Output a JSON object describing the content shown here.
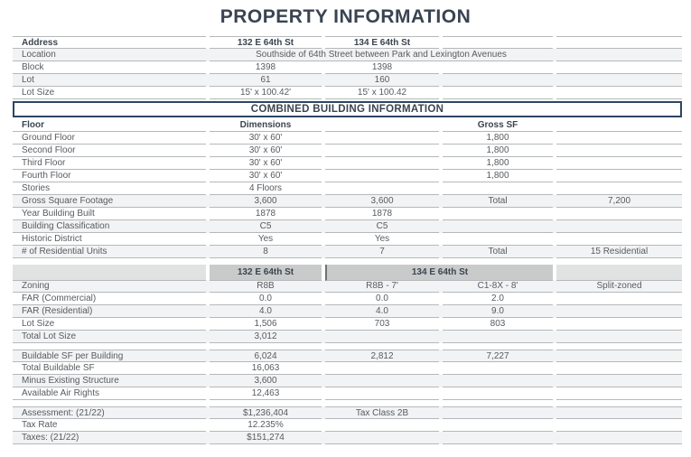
{
  "title": "PROPERTY INFORMATION",
  "colors": {
    "heading_navy": "#3a4351",
    "header_text": "#3b4450",
    "body_text": "#575b5f",
    "row_line": "#b5b8ba",
    "banner_border": "#2d4663",
    "shade_row": "#f2f3f4",
    "colhead_box_bg": "#c8cbca",
    "colhead_row_bg": "#e1e3e2",
    "colhead_divider": "#6e7273"
  },
  "table": {
    "sections": [
      {
        "type": "rows",
        "name": "address-info",
        "topline": true,
        "rows": [
          {
            "name": "address",
            "bold": true,
            "cells": [
              "Address",
              "132 E 64th St",
              "134 E 64th St",
              "",
              ""
            ]
          },
          {
            "name": "location",
            "shade": true,
            "cells": [
              "Location",
              {
                "t": "Southside of 64th Street between Park and Lexington Avenues",
                "span": 3
              },
              ""
            ]
          },
          {
            "name": "block",
            "cells": [
              "Block",
              "1398",
              "1398",
              "",
              ""
            ]
          },
          {
            "name": "lot",
            "shade": true,
            "cells": [
              "Lot",
              "61",
              "160",
              "",
              ""
            ]
          },
          {
            "name": "lot-size",
            "cells": [
              "Lot Size",
              "15' x 100.42'",
              "15' x 100.42",
              "",
              ""
            ]
          }
        ]
      },
      {
        "type": "banner",
        "name": "combined-building-information-header",
        "text": "COMBINED BUILDING INFORMATION"
      },
      {
        "type": "rows",
        "name": "building-info",
        "rows": [
          {
            "name": "floor-header",
            "bold": true,
            "cells": [
              "Floor",
              "Dimensions",
              "",
              "Gross SF",
              ""
            ]
          },
          {
            "name": "ground-floor",
            "cells": [
              "Ground Floor",
              "30' x 60'",
              "",
              "1,800",
              ""
            ]
          },
          {
            "name": "second-floor",
            "cells": [
              "Second Floor",
              "30' x 60'",
              "",
              "1,800",
              ""
            ]
          },
          {
            "name": "third-floor",
            "cells": [
              "Third Floor",
              "30' x 60'",
              "",
              "1,800",
              ""
            ]
          },
          {
            "name": "fourth-floor",
            "cells": [
              "Fourth Floor",
              "30' x 60'",
              "",
              "1,800",
              ""
            ]
          },
          {
            "name": "stories",
            "cells": [
              "Stories",
              "4 Floors",
              "",
              "",
              ""
            ]
          },
          {
            "name": "gross-square-footage",
            "shade": true,
            "cells": [
              "Gross Square Footage",
              "3,600",
              "3,600",
              "Total",
              "7,200"
            ]
          },
          {
            "name": "year-building-built",
            "cells": [
              "Year Building Built",
              "1878",
              "1878",
              "",
              ""
            ]
          },
          {
            "name": "building-classification",
            "shade": true,
            "cells": [
              "Building Classification",
              "C5",
              "C5",
              "",
              ""
            ]
          },
          {
            "name": "historic-district",
            "cells": [
              "Historic District",
              "Yes",
              "Yes",
              "",
              ""
            ]
          },
          {
            "name": "residential-units",
            "shade": true,
            "cells": [
              "# of Residential Units",
              "8",
              "7",
              "Total",
              "15 Residential"
            ]
          }
        ]
      },
      {
        "type": "gap"
      },
      {
        "type": "colheads",
        "name": "building-column-headers",
        "left": "132 E 64th St",
        "right": "134 E 64th St"
      },
      {
        "type": "rows",
        "name": "zoning-info",
        "rows": [
          {
            "name": "zoning",
            "shade": true,
            "cells": [
              "Zoning",
              "R8B",
              "R8B - 7'",
              "C1-8X - 8'",
              "Split-zoned"
            ]
          },
          {
            "name": "far-commercial",
            "cells": [
              "FAR (Commercial)",
              "0.0",
              "0.0",
              "2.0",
              ""
            ]
          },
          {
            "name": "far-residential",
            "shade": true,
            "cells": [
              "FAR (Residential)",
              "4.0",
              "4.0",
              "9.0",
              ""
            ]
          },
          {
            "name": "lot-size-zoning",
            "cells": [
              "Lot Size",
              "1,506",
              "703",
              "803",
              ""
            ]
          },
          {
            "name": "total-lot-size",
            "shade": true,
            "cells": [
              "Total Lot Size",
              "3,012",
              "",
              "",
              ""
            ]
          }
        ]
      },
      {
        "type": "gap"
      },
      {
        "type": "rows",
        "name": "buildable-info",
        "topline": true,
        "rows": [
          {
            "name": "buildable-sf-per-building",
            "shade": true,
            "cells": [
              "Buildable SF per Building",
              "6,024",
              "2,812",
              "7,227",
              ""
            ]
          },
          {
            "name": "total-buildable-sf",
            "cells": [
              "Total Buildable SF",
              "16,063",
              "",
              "",
              ""
            ]
          },
          {
            "name": "minus-existing-structure",
            "shade": true,
            "cells": [
              "Minus Existing Structure",
              "3,600",
              "",
              "",
              ""
            ]
          },
          {
            "name": "available-air-rights",
            "cells": [
              "Available Air Rights",
              "12,463",
              "",
              "",
              ""
            ]
          }
        ]
      },
      {
        "type": "gap"
      },
      {
        "type": "rows",
        "name": "tax-info",
        "topline": true,
        "rows": [
          {
            "name": "assessment",
            "shade": true,
            "cells": [
              "Assessment: (21/22)",
              "$1,236,404",
              "Tax Class 2B",
              "",
              ""
            ]
          },
          {
            "name": "tax-rate",
            "cells": [
              "Tax Rate",
              "12.235%",
              "",
              "",
              ""
            ]
          },
          {
            "name": "taxes",
            "shade": true,
            "cells": [
              "Taxes: (21/22)",
              "$151,274",
              "",
              "",
              ""
            ]
          }
        ]
      }
    ]
  }
}
